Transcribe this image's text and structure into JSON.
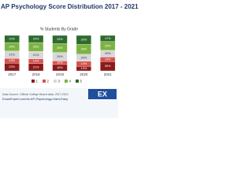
{
  "chart_data": {
    "type": "stacked_bar",
    "title": "AP Psychology Score Distribution 2017 - 2021",
    "subtitle": "% Students By Grade",
    "categories": [
      "2017",
      "2018",
      "2019",
      "2020",
      "2021"
    ],
    "series": [
      {
        "name": "1",
        "color": "#8b1a1a",
        "values": [
          22,
          21,
          18,
          13,
          26
        ],
        "value_labels": [
          "22%",
          "21%",
          "18%",
          "13%",
          "26%"
        ]
      },
      {
        "name": "2",
        "color": "#d9534f",
        "values": [
          13,
          13,
          10,
          14,
          13
        ],
        "value_labels": [
          "13%",
          "13%",
          "10%",
          "14%",
          "13%"
        ]
      },
      {
        "name": "3",
        "color": "#d8d8d8",
        "values": [
          21,
          21,
          24,
          20,
          19
        ],
        "value_labels": [
          "21%",
          "21%",
          "24%",
          "20%",
          "19%"
        ]
      },
      {
        "name": "4",
        "color": "#7cb342",
        "values": [
          24,
          25,
          25,
          28,
          25
        ],
        "value_labels": [
          "24%",
          "25%",
          "25%",
          "28%",
          "25%"
        ]
      },
      {
        "name": "5",
        "color": "#2e6b2e",
        "values": [
          20,
          20,
          23,
          25,
          17
        ],
        "value_labels": [
          "20%",
          "20%",
          "23%",
          "25%",
          "17%"
        ]
      }
    ],
    "ylim": [
      0,
      100
    ],
    "source": "Data Source: Official College Board data, 2017-2021",
    "url": "ExamExpert.com/is-AP-Psychology-Hard-Easy",
    "logo": "EX"
  }
}
